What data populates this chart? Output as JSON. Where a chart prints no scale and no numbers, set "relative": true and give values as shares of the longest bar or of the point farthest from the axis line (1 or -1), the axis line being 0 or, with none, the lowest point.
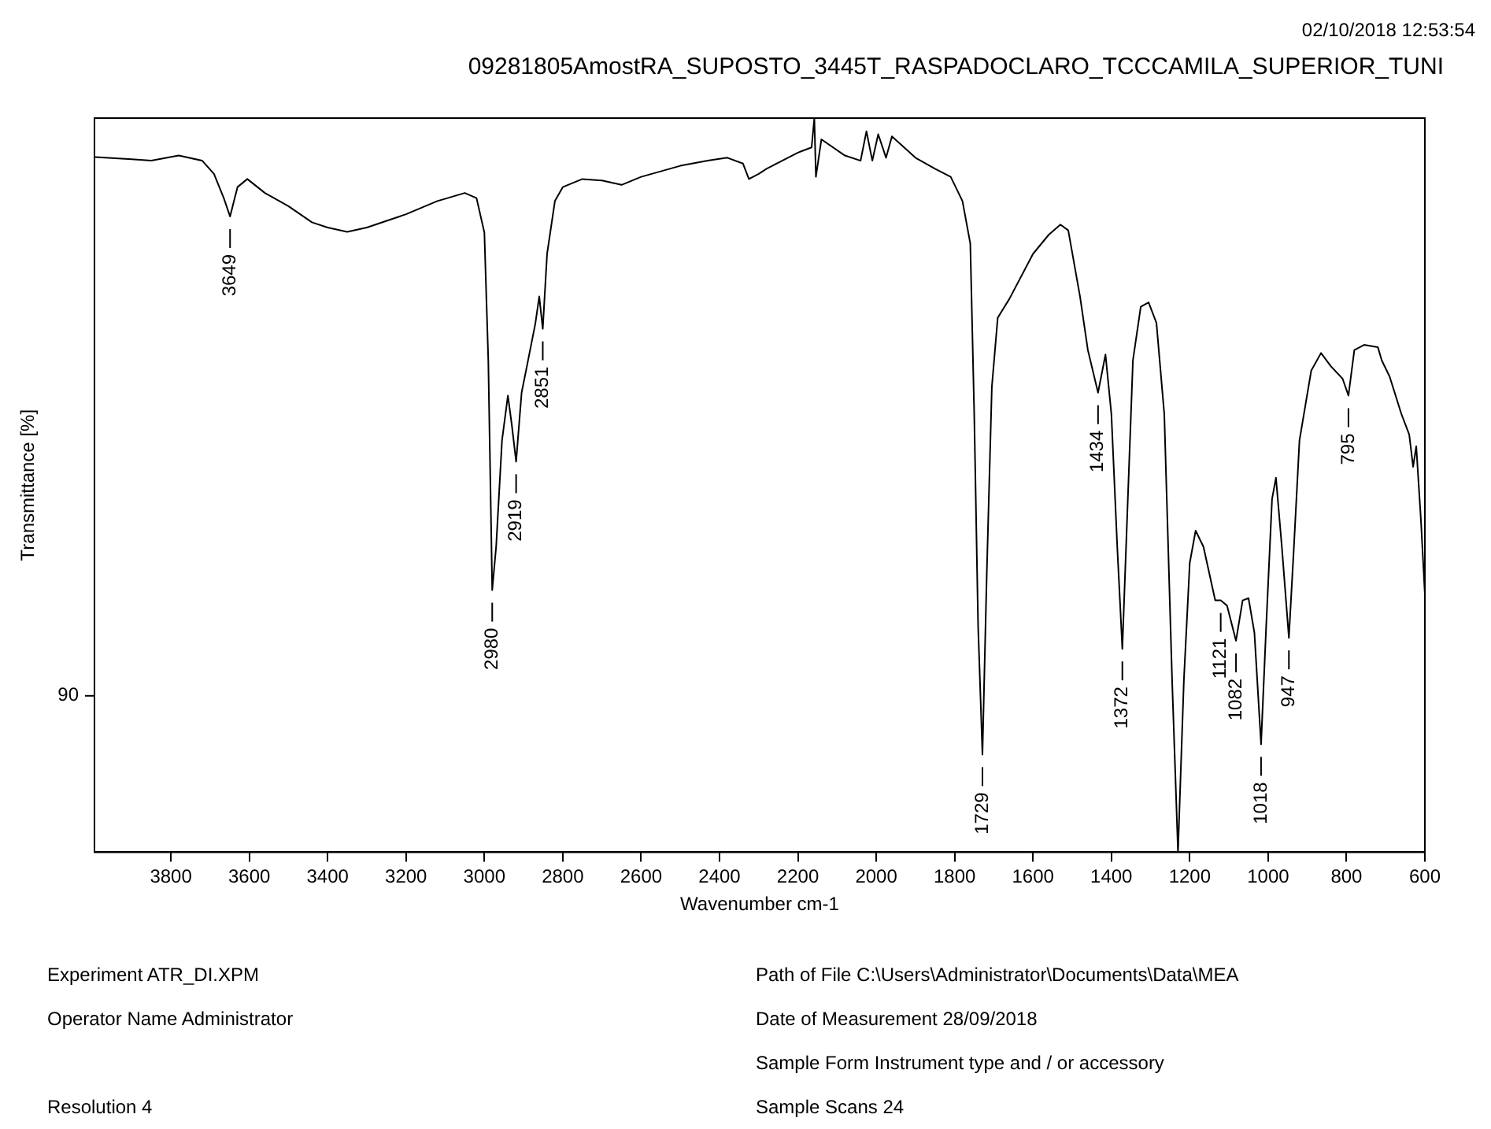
{
  "chart_data": {
    "type": "line",
    "title": "09281805AmostRA_SUPOSTO_3445T_RASPADOCLARO_TCCCAMILA_SUPERIOR_TUNI",
    "subtitle": "02/10/2018  12:53:54",
    "xlabel": "Wavenumber cm-1",
    "ylabel": "Transmittance [%]",
    "relative": true,
    "color": "#000000",
    "x": [
      3993,
      3900,
      3850,
      3780,
      3720,
      3690,
      3665,
      3649,
      3630,
      3605,
      3560,
      3500,
      3440,
      3400,
      3350,
      3300,
      3200,
      3120,
      3050,
      3020,
      3000,
      2990,
      2980,
      2970,
      2955,
      2940,
      2930,
      2919,
      2905,
      2890,
      2870,
      2860,
      2851,
      2840,
      2820,
      2800,
      2750,
      2700,
      2650,
      2600,
      2500,
      2430,
      2380,
      2340,
      2325,
      2300,
      2280,
      2200,
      2165,
      2158,
      2154,
      2140,
      2080,
      2040,
      2025,
      2010,
      1995,
      1975,
      1960,
      1900,
      1850,
      1810,
      1780,
      1760,
      1750,
      1740,
      1729,
      1718,
      1705,
      1690,
      1660,
      1600,
      1560,
      1530,
      1510,
      1480,
      1460,
      1434,
      1415,
      1400,
      1385,
      1372,
      1360,
      1345,
      1325,
      1305,
      1285,
      1265,
      1245,
      1230,
      1215,
      1200,
      1185,
      1165,
      1135,
      1121,
      1105,
      1082,
      1065,
      1050,
      1035,
      1018,
      1005,
      990,
      980,
      965,
      947,
      935,
      920,
      890,
      865,
      840,
      810,
      795,
      780,
      755,
      720,
      710,
      690,
      660,
      640,
      630,
      622,
      610,
      600
    ],
    "values": [
      0.947,
      0.944,
      0.942,
      0.949,
      0.942,
      0.924,
      0.891,
      0.866,
      0.906,
      0.917,
      0.898,
      0.88,
      0.858,
      0.851,
      0.845,
      0.851,
      0.869,
      0.887,
      0.898,
      0.891,
      0.844,
      0.67,
      0.357,
      0.416,
      0.561,
      0.622,
      0.582,
      0.532,
      0.626,
      0.666,
      0.72,
      0.757,
      0.713,
      0.815,
      0.887,
      0.906,
      0.917,
      0.915,
      0.909,
      0.92,
      0.935,
      0.942,
      0.946,
      0.938,
      0.917,
      0.924,
      0.931,
      0.953,
      0.96,
      1,
      0.92,
      0.971,
      0.949,
      0.942,
      0.982,
      0.942,
      0.978,
      0.946,
      0.975,
      0.946,
      0.931,
      0.92,
      0.887,
      0.829,
      0.597,
      0.307,
      0.133,
      0.379,
      0.634,
      0.728,
      0.754,
      0.815,
      0.841,
      0.855,
      0.847,
      0.757,
      0.684,
      0.626,
      0.678,
      0.597,
      0.416,
      0.277,
      0.452,
      0.67,
      0.743,
      0.749,
      0.721,
      0.597,
      0.234,
      0,
      0.234,
      0.394,
      0.438,
      0.416,
      0.343,
      0.343,
      0.336,
      0.288,
      0.343,
      0.346,
      0.299,
      0.147,
      0.307,
      0.481,
      0.51,
      0.416,
      0.292,
      0.408,
      0.561,
      0.656,
      0.68,
      0.662,
      0.645,
      0.622,
      0.684,
      0.691,
      0.688,
      0.67,
      0.648,
      0.597,
      0.569,
      0.525,
      0.553,
      0.452,
      0.351
    ],
    "xlim": [
      3995,
      600
    ],
    "xticks": [
      3800,
      3600,
      3400,
      3200,
      3000,
      2800,
      2600,
      2400,
      2200,
      2000,
      1800,
      1600,
      1400,
      1200,
      1000,
      800,
      600
    ],
    "annotations": [
      "90",
      {
        "text": "3649",
        "x": 3649,
        "y": 0.866
      },
      {
        "text": "2980",
        "x": 2980,
        "y": 0.357
      },
      {
        "text": "2919",
        "x": 2919,
        "y": 0.532
      },
      {
        "text": "2851",
        "x": 2851,
        "y": 0.713
      },
      {
        "text": "1729",
        "x": 1729,
        "y": 0.133
      },
      {
        "text": "1434",
        "x": 1434,
        "y": 0.626
      },
      {
        "text": "1372",
        "x": 1372,
        "y": 0.277
      },
      {
        "text": "1121",
        "x": 1121,
        "y": 0.343
      },
      {
        "text": "1082",
        "x": 1082,
        "y": 0.288
      },
      {
        "text": "1018",
        "x": 1018,
        "y": 0.147
      },
      {
        "text": "947",
        "x": 947,
        "y": 0.292
      },
      {
        "text": "795",
        "x": 795,
        "y": 0.622
      },
      "Experiment ATR_DI.XPM",
      "Operator Name Administrator",
      "Resolution 4",
      "Path of File C:\\Users\\Administrator\\Documents\\Data\\MEA",
      "Date of Measurement 28/09/2018",
      "Sample Form Instrument type and / or accessory",
      "Sample Scans 24"
    ]
  }
}
